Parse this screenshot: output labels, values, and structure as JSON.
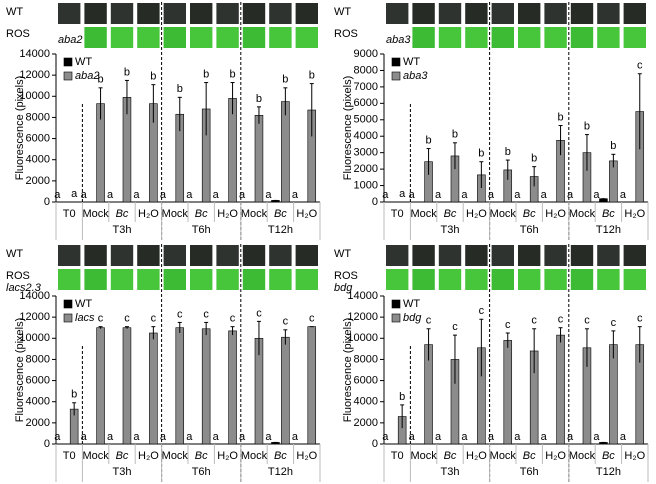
{
  "chart_data": [
    {
      "type": "bar",
      "strip": {
        "top": "WT",
        "side": "ROS",
        "bottom": "aba2"
      },
      "strip_label_position": "tile",
      "y_label": "Fluorescence (pixels)",
      "categories": [
        "T0",
        "Mock",
        "Bc",
        "H₂O",
        "Mock",
        "Bc",
        "H₂O",
        "Mock",
        "Bc",
        "H₂O"
      ],
      "groups": [
        "T3h",
        "T6h",
        "T12h"
      ],
      "ylim": [
        0,
        14000
      ],
      "yticks": [
        0,
        2000,
        4000,
        6000,
        8000,
        10000,
        12000,
        14000
      ],
      "series": [
        {
          "name": "WT",
          "color": "#000000",
          "values": [
            0,
            0,
            0,
            0,
            0,
            0,
            0,
            0,
            150,
            0
          ],
          "errors": [
            0,
            0,
            0,
            0,
            0,
            0,
            0,
            0,
            0,
            0
          ],
          "letters": [
            "a",
            "a",
            "a",
            "a",
            "a",
            "a",
            "a",
            "a",
            "a",
            "a"
          ]
        },
        {
          "name": "aba2",
          "color": "#8c8c8c",
          "values": [
            0,
            9300,
            9900,
            9300,
            8300,
            8800,
            9800,
            8200,
            9500,
            8700
          ],
          "errors": [
            0,
            1500,
            1600,
            1800,
            1600,
            2500,
            1500,
            800,
            1300,
            2500
          ],
          "letters": [
            "a",
            "b",
            "b",
            "b",
            "b",
            "b",
            "b",
            "b",
            "b",
            "b"
          ]
        }
      ]
    },
    {
      "type": "bar",
      "strip": {
        "top": "WT",
        "side": "ROS",
        "bottom": "aba3"
      },
      "strip_label_position": "tile",
      "y_label": "Fluorescence (pixels)",
      "categories": [
        "T0",
        "Mock",
        "Bc",
        "H₂O",
        "Mock",
        "Bc",
        "H₂O",
        "Mock",
        "Bc",
        "H₂O"
      ],
      "groups": [
        "T3h",
        "T6h",
        "T12h"
      ],
      "ylim": [
        0,
        9000
      ],
      "yticks": [
        0,
        1000,
        2000,
        3000,
        4000,
        5000,
        6000,
        7000,
        8000,
        9000
      ],
      "series": [
        {
          "name": "WT",
          "color": "#000000",
          "values": [
            0,
            0,
            0,
            0,
            0,
            0,
            0,
            0,
            200,
            0
          ],
          "errors": [
            0,
            0,
            0,
            0,
            0,
            0,
            0,
            0,
            0,
            0
          ],
          "letters": [
            "a",
            "a",
            "a",
            "a",
            "a",
            "a",
            "a",
            "a",
            "a",
            "a"
          ]
        },
        {
          "name": "aba3",
          "color": "#8c8c8c",
          "values": [
            0,
            2450,
            2800,
            1650,
            1950,
            1550,
            3750,
            3000,
            2500,
            5500
          ],
          "errors": [
            0,
            800,
            800,
            800,
            600,
            600,
            900,
            1100,
            400,
            2300
          ],
          "letters": [
            "a",
            "b",
            "b",
            "b",
            "b",
            "b",
            "b",
            "b",
            "b",
            "c"
          ]
        }
      ]
    },
    {
      "type": "bar",
      "strip": {
        "top": "WT",
        "side": "ROS",
        "bottom": "lacs2.3"
      },
      "strip_label_position": "left",
      "y_label": "Fluorescence (pixels)",
      "categories": [
        "T0",
        "Mock",
        "Bc",
        "H₂O",
        "Mock",
        "Bc",
        "H₂O",
        "Mock",
        "Bc",
        "H₂O"
      ],
      "groups": [
        "T3h",
        "T6h",
        "T12h"
      ],
      "ylim": [
        0,
        14000
      ],
      "yticks": [
        0,
        2000,
        4000,
        6000,
        8000,
        10000,
        12000,
        14000
      ],
      "series": [
        {
          "name": "WT",
          "color": "#000000",
          "values": [
            0,
            0,
            0,
            0,
            0,
            0,
            0,
            0,
            150,
            0
          ],
          "errors": [
            0,
            0,
            0,
            0,
            0,
            0,
            0,
            0,
            0,
            0
          ],
          "letters": [
            "a",
            "a",
            "a",
            "a",
            "a",
            "a",
            "a",
            "a",
            "a",
            "a"
          ]
        },
        {
          "name": "lacs",
          "color": "#8c8c8c",
          "values": [
            3300,
            11000,
            11000,
            10500,
            11000,
            10900,
            10700,
            10000,
            10100,
            11100
          ],
          "errors": [
            600,
            100,
            100,
            600,
            500,
            600,
            400,
            1600,
            700,
            0
          ],
          "letters": [
            "b",
            "c",
            "c",
            "c",
            "c",
            "c",
            "c",
            "c",
            "c",
            "c"
          ]
        }
      ]
    },
    {
      "type": "bar",
      "strip": {
        "top": "WT",
        "side": "ROS",
        "bottom": "bdg"
      },
      "strip_label_position": "left",
      "y_label": "Fluorescence (pixels)",
      "categories": [
        "T0",
        "Mock",
        "Bc",
        "H₂O",
        "Mock",
        "Bc",
        "H₂O",
        "Mock",
        "Bc",
        "H₂O"
      ],
      "groups": [
        "T3h",
        "T6h",
        "T12h"
      ],
      "ylim": [
        0,
        14000
      ],
      "yticks": [
        0,
        2000,
        4000,
        6000,
        8000,
        10000,
        12000,
        14000
      ],
      "series": [
        {
          "name": "WT",
          "color": "#000000",
          "values": [
            0,
            0,
            0,
            0,
            0,
            0,
            0,
            0,
            150,
            0
          ],
          "errors": [
            0,
            0,
            0,
            0,
            0,
            0,
            0,
            0,
            0,
            0
          ],
          "letters": [
            "a",
            "a",
            "a",
            "a",
            "a",
            "a",
            "a",
            "a",
            "a",
            "a"
          ]
        },
        {
          "name": "bdg",
          "color": "#8c8c8c",
          "values": [
            2600,
            9400,
            8000,
            9100,
            9800,
            8800,
            10300,
            9100,
            9400,
            9400
          ],
          "errors": [
            1100,
            1500,
            2300,
            2700,
            700,
            2100,
            700,
            1800,
            1300,
            1700
          ],
          "letters": [
            "b",
            "c",
            "c",
            "c",
            "c",
            "c",
            "c",
            "c",
            "c",
            "c"
          ]
        }
      ]
    }
  ]
}
